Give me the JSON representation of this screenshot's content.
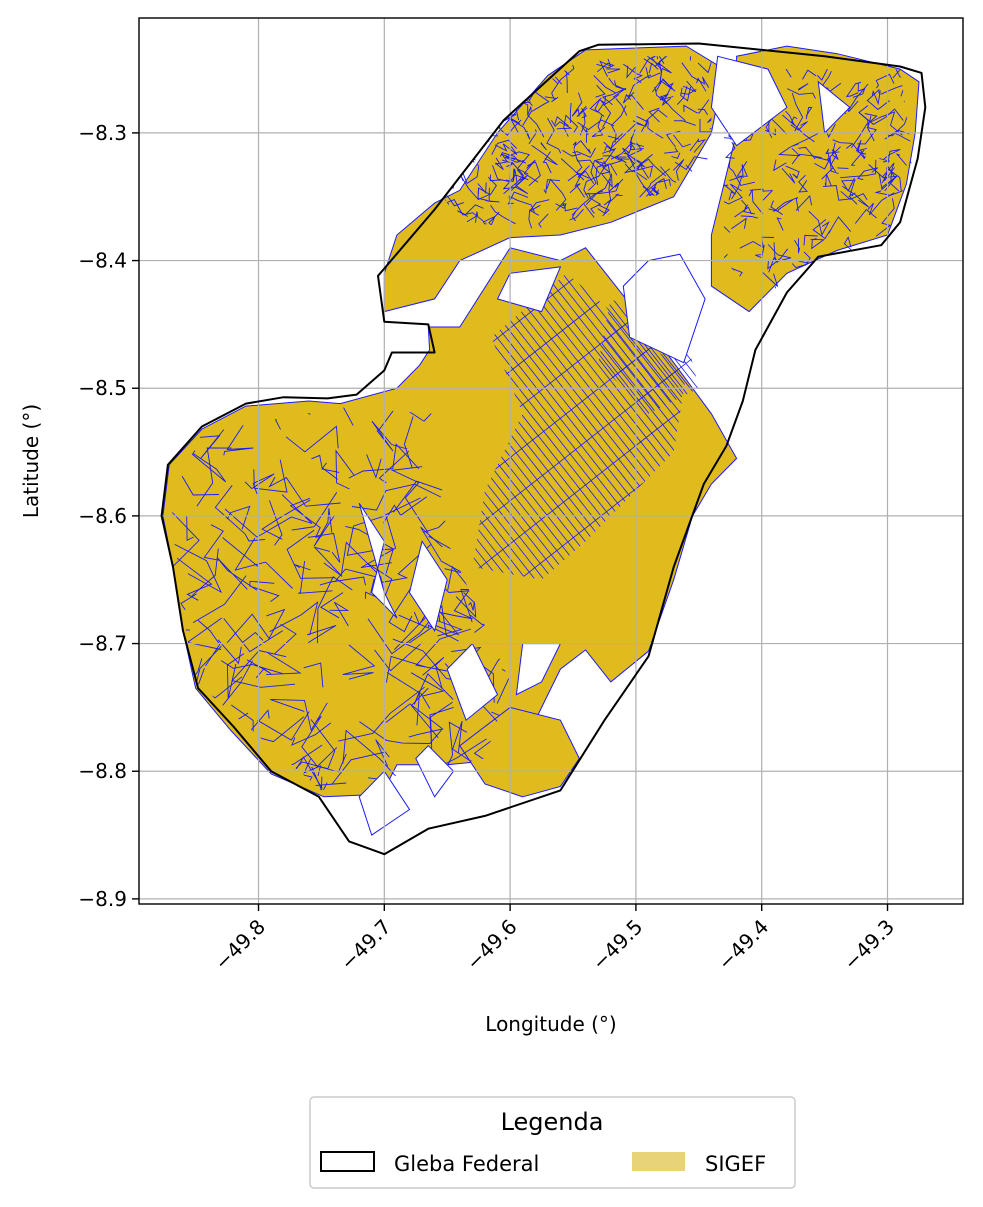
{
  "chart_data": {
    "type": "map",
    "xlabel": "Longitude (°)",
    "ylabel": "Latitude (°)",
    "xlim": [
      -49.895,
      -49.24
    ],
    "ylim": [
      -8.904,
      -8.21
    ],
    "xticks": [
      -49.8,
      -49.7,
      -49.6,
      -49.5,
      -49.4,
      -49.3
    ],
    "xtick_labels": [
      "−49.8",
      "−49.7",
      "−49.6",
      "−49.5",
      "−49.4",
      "−49.3"
    ],
    "yticks": [
      -8.3,
      -8.4,
      -8.5,
      -8.6,
      -8.7,
      -8.8,
      -8.9
    ],
    "ytick_labels": [
      "−8.3",
      "−8.4",
      "−8.5",
      "−8.6",
      "−8.7",
      "−8.8",
      "−8.9"
    ],
    "grid": true,
    "legend": {
      "title": "Legenda",
      "placement": "bottom-center",
      "entries": [
        {
          "label": "Gleba Federal",
          "style": "outline",
          "edge": "#000000",
          "fill": "none"
        },
        {
          "label": "SIGEF",
          "style": "fill",
          "fill": "#e8d477",
          "edge": "none"
        }
      ]
    },
    "colors": {
      "gleba_outline": "#000000",
      "sigef_fill": "#dfbb1d",
      "sigef_edge": "#1a1aff",
      "grid": "#b0b0b0"
    },
    "gleba_boundary": [
      [
        -49.745,
        -8.508
      ],
      [
        -49.722,
        -8.505
      ],
      [
        -49.7,
        -8.486
      ],
      [
        -49.694,
        -8.472
      ],
      [
        -49.66,
        -8.472
      ],
      [
        -49.665,
        -8.45
      ],
      [
        -49.7,
        -8.448
      ],
      [
        -49.705,
        -8.412
      ],
      [
        -49.66,
        -8.36
      ],
      [
        -49.605,
        -8.29
      ],
      [
        -49.545,
        -8.236
      ],
      [
        -49.53,
        -8.231
      ],
      [
        -49.45,
        -8.23
      ],
      [
        -49.35,
        -8.24
      ],
      [
        -49.29,
        -8.248
      ],
      [
        -49.273,
        -8.253
      ],
      [
        -49.27,
        -8.28
      ],
      [
        -49.276,
        -8.32
      ],
      [
        -49.29,
        -8.37
      ],
      [
        -49.305,
        -8.388
      ],
      [
        -49.355,
        -8.397
      ],
      [
        -49.38,
        -8.425
      ],
      [
        -49.405,
        -8.47
      ],
      [
        -49.415,
        -8.51
      ],
      [
        -49.428,
        -8.545
      ],
      [
        -49.446,
        -8.575
      ],
      [
        -49.47,
        -8.64
      ],
      [
        -49.49,
        -8.71
      ],
      [
        -49.525,
        -8.76
      ],
      [
        -49.56,
        -8.815
      ],
      [
        -49.62,
        -8.835
      ],
      [
        -49.665,
        -8.845
      ],
      [
        -49.7,
        -8.865
      ],
      [
        -49.728,
        -8.855
      ],
      [
        -49.752,
        -8.82
      ],
      [
        -49.79,
        -8.8
      ],
      [
        -49.82,
        -8.765
      ],
      [
        -49.848,
        -8.735
      ],
      [
        -49.86,
        -8.69
      ],
      [
        -49.868,
        -8.64
      ],
      [
        -49.877,
        -8.6
      ],
      [
        -49.872,
        -8.56
      ],
      [
        -49.845,
        -8.53
      ],
      [
        -49.81,
        -8.512
      ],
      [
        -49.78,
        -8.507
      ],
      [
        -49.745,
        -8.508
      ]
    ],
    "sigef_regions": [
      [
        [
          -49.845,
          -8.532
        ],
        [
          -49.81,
          -8.514
        ],
        [
          -49.76,
          -8.51
        ],
        [
          -49.735,
          -8.512
        ],
        [
          -49.69,
          -8.5
        ],
        [
          -49.672,
          -8.482
        ],
        [
          -49.664,
          -8.47
        ],
        [
          -49.665,
          -8.452
        ],
        [
          -49.64,
          -8.452
        ],
        [
          -49.6,
          -8.39
        ],
        [
          -49.56,
          -8.4
        ],
        [
          -49.54,
          -8.39
        ],
        [
          -49.5,
          -8.44
        ],
        [
          -49.47,
          -8.48
        ],
        [
          -49.44,
          -8.52
        ],
        [
          -49.42,
          -8.555
        ],
        [
          -49.44,
          -8.575
        ],
        [
          -49.455,
          -8.6
        ],
        [
          -49.47,
          -8.65
        ],
        [
          -49.49,
          -8.706
        ],
        [
          -49.52,
          -8.73
        ],
        [
          -49.54,
          -8.705
        ],
        [
          -49.56,
          -8.72
        ],
        [
          -49.58,
          -8.76
        ],
        [
          -49.6,
          -8.79
        ],
        [
          -49.65,
          -8.795
        ],
        [
          -49.69,
          -8.795
        ],
        [
          -49.702,
          -8.818
        ],
        [
          -49.748,
          -8.82
        ],
        [
          -49.79,
          -8.802
        ],
        [
          -49.822,
          -8.768
        ],
        [
          -49.85,
          -8.735
        ],
        [
          -49.86,
          -8.69
        ],
        [
          -49.868,
          -8.64
        ],
        [
          -49.876,
          -8.6
        ],
        [
          -49.871,
          -8.56
        ],
        [
          -49.845,
          -8.532
        ]
      ],
      [
        [
          -49.7,
          -8.41
        ],
        [
          -49.69,
          -8.38
        ],
        [
          -49.66,
          -8.355
        ],
        [
          -49.64,
          -8.345
        ],
        [
          -49.61,
          -8.3
        ],
        [
          -49.57,
          -8.255
        ],
        [
          -49.54,
          -8.235
        ],
        [
          -49.46,
          -8.232
        ],
        [
          -49.43,
          -8.25
        ],
        [
          -49.44,
          -8.3
        ],
        [
          -49.47,
          -8.35
        ],
        [
          -49.52,
          -8.37
        ],
        [
          -49.56,
          -8.38
        ],
        [
          -49.6,
          -8.382
        ],
        [
          -49.64,
          -8.4
        ],
        [
          -49.66,
          -8.43
        ],
        [
          -49.7,
          -8.44
        ],
        [
          -49.7,
          -8.41
        ]
      ],
      [
        [
          -49.42,
          -8.24
        ],
        [
          -49.38,
          -8.232
        ],
        [
          -49.34,
          -8.238
        ],
        [
          -49.29,
          -8.25
        ],
        [
          -49.275,
          -8.26
        ],
        [
          -49.278,
          -8.3
        ],
        [
          -49.285,
          -8.34
        ],
        [
          -49.3,
          -8.38
        ],
        [
          -49.34,
          -8.392
        ],
        [
          -49.38,
          -8.41
        ],
        [
          -49.41,
          -8.44
        ],
        [
          -49.44,
          -8.42
        ],
        [
          -49.44,
          -8.38
        ],
        [
          -49.42,
          -8.3
        ],
        [
          -49.42,
          -8.24
        ]
      ],
      [
        [
          -49.59,
          -8.82
        ],
        [
          -49.56,
          -8.812
        ],
        [
          -49.545,
          -8.79
        ],
        [
          -49.56,
          -8.76
        ],
        [
          -49.6,
          -8.75
        ],
        [
          -49.64,
          -8.78
        ],
        [
          -49.62,
          -8.81
        ],
        [
          -49.59,
          -8.82
        ]
      ]
    ],
    "holes": [
      [
        [
          -49.465,
          -8.395
        ],
        [
          -49.445,
          -8.43
        ],
        [
          -49.462,
          -8.48
        ],
        [
          -49.505,
          -8.46
        ],
        [
          -49.51,
          -8.42
        ],
        [
          -49.49,
          -8.4
        ],
        [
          -49.465,
          -8.395
        ]
      ],
      [
        [
          -49.56,
          -8.405
        ],
        [
          -49.575,
          -8.44
        ],
        [
          -49.61,
          -8.43
        ],
        [
          -49.6,
          -8.41
        ],
        [
          -49.56,
          -8.405
        ]
      ],
      [
        [
          -49.435,
          -8.24
        ],
        [
          -49.395,
          -8.25
        ],
        [
          -49.38,
          -8.28
        ],
        [
          -49.42,
          -8.31
        ],
        [
          -49.44,
          -8.28
        ],
        [
          -49.435,
          -8.24
        ]
      ],
      [
        [
          -49.355,
          -8.26
        ],
        [
          -49.33,
          -8.28
        ],
        [
          -49.35,
          -8.3
        ],
        [
          -49.355,
          -8.26
        ]
      ],
      [
        [
          -49.72,
          -8.59
        ],
        [
          -49.7,
          -8.62
        ],
        [
          -49.71,
          -8.66
        ],
        [
          -49.69,
          -8.68
        ],
        [
          -49.7,
          -8.66
        ],
        [
          -49.72,
          -8.59
        ]
      ],
      [
        [
          -49.67,
          -8.62
        ],
        [
          -49.65,
          -8.65
        ],
        [
          -49.66,
          -8.69
        ],
        [
          -49.68,
          -8.66
        ],
        [
          -49.67,
          -8.62
        ]
      ],
      [
        [
          -49.63,
          -8.7
        ],
        [
          -49.61,
          -8.74
        ],
        [
          -49.635,
          -8.76
        ],
        [
          -49.65,
          -8.72
        ],
        [
          -49.63,
          -8.7
        ]
      ],
      [
        [
          -49.56,
          -8.7
        ],
        [
          -49.575,
          -8.73
        ],
        [
          -49.595,
          -8.74
        ],
        [
          -49.59,
          -8.7
        ],
        [
          -49.56,
          -8.7
        ]
      ],
      [
        [
          -49.7,
          -8.8
        ],
        [
          -49.68,
          -8.83
        ],
        [
          -49.71,
          -8.85
        ],
        [
          -49.72,
          -8.82
        ],
        [
          -49.7,
          -8.8
        ]
      ],
      [
        [
          -49.665,
          -8.78
        ],
        [
          -49.645,
          -8.8
        ],
        [
          -49.66,
          -8.82
        ],
        [
          -49.675,
          -8.79
        ],
        [
          -49.665,
          -8.78
        ]
      ]
    ],
    "dense_grid_block": [
      [
        -49.615,
        -8.46
      ],
      [
        -49.555,
        -8.41
      ],
      [
        -49.46,
        -8.49
      ],
      [
        -49.47,
        -8.55
      ],
      [
        -49.54,
        -8.62
      ],
      [
        -49.575,
        -8.65
      ],
      [
        -49.63,
        -8.64
      ],
      [
        -49.62,
        -8.58
      ],
      [
        -49.59,
        -8.52
      ],
      [
        -49.615,
        -8.46
      ]
    ],
    "dense_grid_block_2": [
      [
        -49.52,
        -8.43
      ],
      [
        -49.46,
        -8.46
      ],
      [
        -49.45,
        -8.5
      ],
      [
        -49.49,
        -8.52
      ],
      [
        -49.53,
        -8.48
      ],
      [
        -49.52,
        -8.43
      ]
    ],
    "north_parcel_area": [
      [
        -49.66,
        -8.34
      ],
      [
        -49.6,
        -8.28
      ],
      [
        -49.54,
        -8.24
      ],
      [
        -49.44,
        -8.24
      ],
      [
        -49.44,
        -8.32
      ],
      [
        -49.5,
        -8.36
      ],
      [
        -49.58,
        -8.375
      ],
      [
        -49.64,
        -8.37
      ],
      [
        -49.66,
        -8.34
      ]
    ],
    "east_parcel_area": [
      [
        -49.43,
        -8.25
      ],
      [
        -49.29,
        -8.25
      ],
      [
        -49.28,
        -8.32
      ],
      [
        -49.3,
        -8.385
      ],
      [
        -49.36,
        -8.4
      ],
      [
        -49.4,
        -8.43
      ],
      [
        -49.43,
        -8.4
      ],
      [
        -49.43,
        -8.25
      ]
    ],
    "west_parcel_area": [
      [
        -49.845,
        -8.535
      ],
      [
        -49.735,
        -8.515
      ],
      [
        -49.66,
        -8.52
      ],
      [
        -49.65,
        -8.62
      ],
      [
        -49.6,
        -8.73
      ],
      [
        -49.62,
        -8.79
      ],
      [
        -49.75,
        -8.815
      ],
      [
        -49.85,
        -8.73
      ],
      [
        -49.875,
        -8.6
      ],
      [
        -49.845,
        -8.535
      ]
    ]
  }
}
